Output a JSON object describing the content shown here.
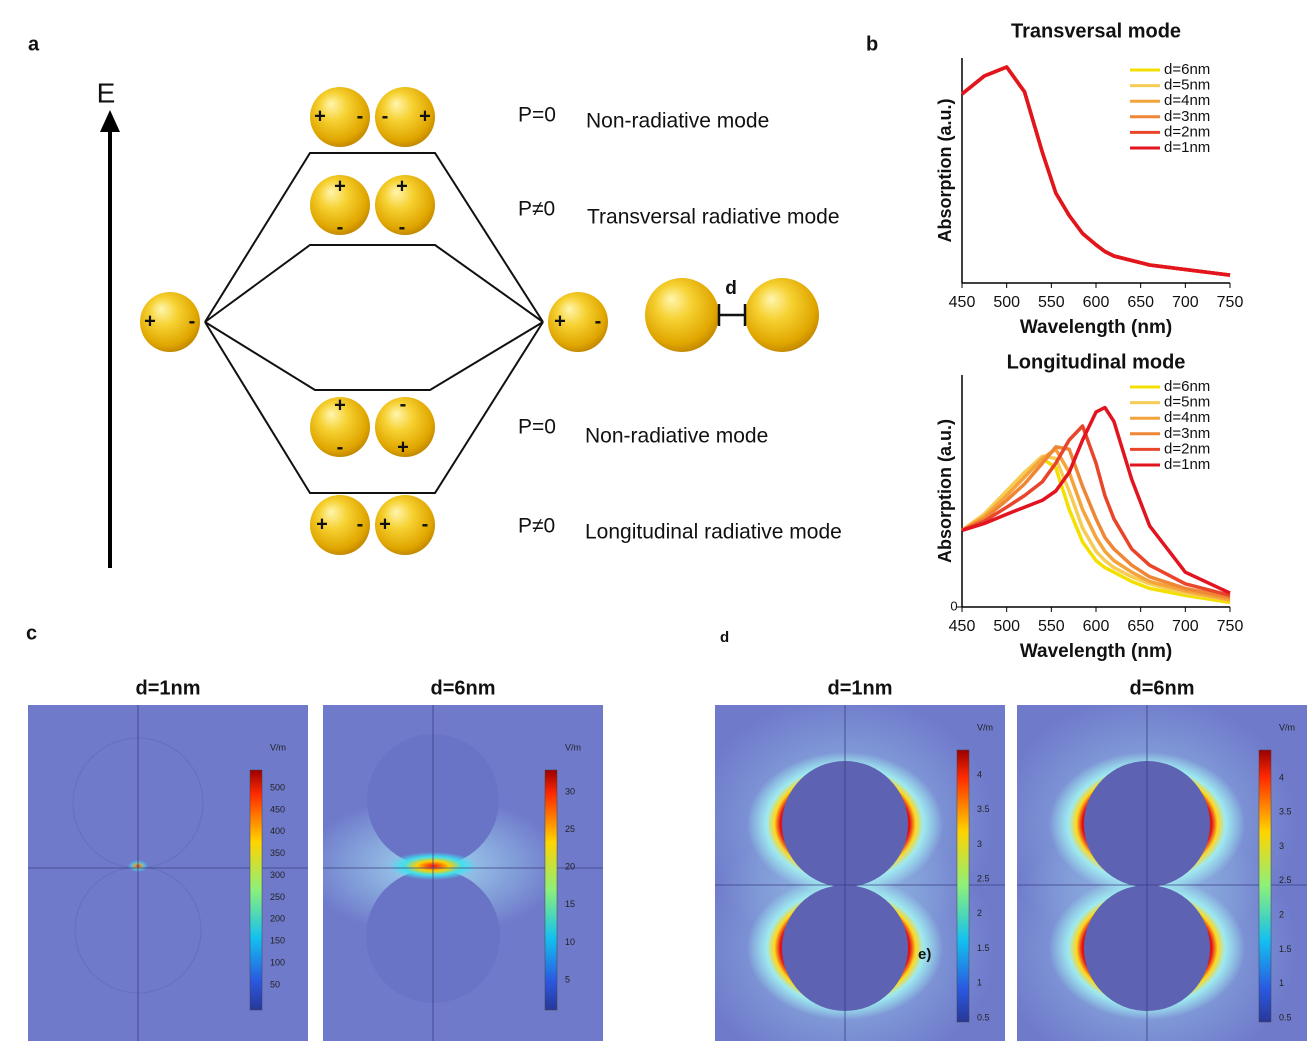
{
  "panel_labels": [
    "a",
    "b",
    "c",
    "d"
  ],
  "panel_a": {
    "energy_axis": "E",
    "plus": "+",
    "minus": "-",
    "gap_label": "d",
    "modes": [
      {
        "polarization": "P=0",
        "name": "Non-radiative mode"
      },
      {
        "polarization": "P≠0",
        "name": "Transversal radiative mode"
      },
      {
        "polarization": "P=0",
        "name": "Non-radiative mode"
      },
      {
        "polarization": "P≠0",
        "name": "Longitudinal radiative mode"
      }
    ]
  },
  "chart_data": [
    {
      "type": "line",
      "title": "Transversal mode",
      "x_label": "Wavelength (nm)",
      "y_label": "Absorption (a.u.)",
      "x": [
        450,
        475,
        500,
        520,
        540,
        555,
        570,
        585,
        600,
        610,
        620,
        640,
        660,
        700,
        750
      ],
      "xlim": [
        450,
        750
      ],
      "ylim": [
        0,
        1
      ],
      "xticks": [
        450,
        500,
        550,
        600,
        650,
        700,
        750
      ],
      "yticks": [],
      "legend": "upper right",
      "series": [
        {
          "name": "d=6nm",
          "color": "#f3e000",
          "values": [
            0.84,
            0.92,
            0.96,
            0.85,
            0.58,
            0.4,
            0.3,
            0.22,
            0.17,
            0.14,
            0.12,
            0.1,
            0.08,
            0.06,
            0.035
          ]
        },
        {
          "name": "d=5nm",
          "color": "#f7cc55",
          "values": [
            0.84,
            0.92,
            0.96,
            0.85,
            0.58,
            0.4,
            0.3,
            0.22,
            0.17,
            0.14,
            0.12,
            0.1,
            0.08,
            0.06,
            0.035
          ]
        },
        {
          "name": "d=4nm",
          "color": "#f4a43a",
          "values": [
            0.84,
            0.92,
            0.96,
            0.85,
            0.58,
            0.4,
            0.3,
            0.22,
            0.17,
            0.14,
            0.12,
            0.1,
            0.08,
            0.06,
            0.035
          ]
        },
        {
          "name": "d=3nm",
          "color": "#ef8636",
          "values": [
            0.84,
            0.92,
            0.96,
            0.85,
            0.58,
            0.4,
            0.3,
            0.22,
            0.17,
            0.14,
            0.12,
            0.1,
            0.08,
            0.06,
            0.035
          ]
        },
        {
          "name": "d=2nm",
          "color": "#e8452b",
          "values": [
            0.84,
            0.92,
            0.96,
            0.85,
            0.58,
            0.4,
            0.3,
            0.22,
            0.17,
            0.14,
            0.12,
            0.1,
            0.08,
            0.06,
            0.035
          ]
        },
        {
          "name": "d=1nm",
          "color": "#e2141f",
          "values": [
            0.84,
            0.92,
            0.96,
            0.85,
            0.58,
            0.4,
            0.3,
            0.22,
            0.17,
            0.14,
            0.12,
            0.1,
            0.08,
            0.06,
            0.035
          ]
        }
      ]
    },
    {
      "type": "line",
      "title": "Longitudinal mode",
      "x_label": "Wavelength (nm)",
      "y_label": "Absorption (a.u.)",
      "x": [
        450,
        475,
        500,
        520,
        540,
        555,
        570,
        585,
        600,
        610,
        620,
        640,
        660,
        700,
        750
      ],
      "xlim": [
        450,
        750
      ],
      "ylim": [
        0,
        1
      ],
      "xticks": [
        450,
        500,
        550,
        600,
        650,
        700,
        750
      ],
      "yticks": [
        0
      ],
      "legend": "upper right",
      "series": [
        {
          "name": "d=6nm",
          "color": "#f3e000",
          "values": [
            0.33,
            0.4,
            0.5,
            0.58,
            0.64,
            0.6,
            0.42,
            0.28,
            0.2,
            0.17,
            0.15,
            0.11,
            0.08,
            0.05,
            0.02
          ]
        },
        {
          "name": "d=5nm",
          "color": "#f7cc55",
          "values": [
            0.33,
            0.4,
            0.5,
            0.58,
            0.65,
            0.64,
            0.5,
            0.34,
            0.24,
            0.2,
            0.17,
            0.13,
            0.1,
            0.06,
            0.03
          ]
        },
        {
          "name": "d=4nm",
          "color": "#f4a43a",
          "values": [
            0.33,
            0.39,
            0.48,
            0.56,
            0.64,
            0.68,
            0.58,
            0.42,
            0.3,
            0.24,
            0.2,
            0.15,
            0.11,
            0.07,
            0.03
          ]
        },
        {
          "name": "d=3nm",
          "color": "#ef8636",
          "values": [
            0.33,
            0.38,
            0.46,
            0.53,
            0.62,
            0.69,
            0.68,
            0.52,
            0.38,
            0.3,
            0.25,
            0.18,
            0.13,
            0.08,
            0.04
          ]
        },
        {
          "name": "d=2nm",
          "color": "#e8452b",
          "values": [
            0.33,
            0.37,
            0.43,
            0.48,
            0.54,
            0.62,
            0.72,
            0.78,
            0.62,
            0.48,
            0.38,
            0.25,
            0.18,
            0.1,
            0.05
          ]
        },
        {
          "name": "d=1nm",
          "color": "#e2141f",
          "values": [
            0.33,
            0.36,
            0.4,
            0.43,
            0.46,
            0.5,
            0.58,
            0.72,
            0.84,
            0.86,
            0.8,
            0.55,
            0.35,
            0.15,
            0.06
          ]
        }
      ]
    }
  ],
  "panel_c": {
    "maps": [
      {
        "title": "d=1nm",
        "unit": "V/m",
        "colorbar_ticks": [
          500,
          450,
          400,
          350,
          300,
          250,
          200,
          150,
          100,
          50
        ]
      },
      {
        "title": "d=6nm",
        "unit": "V/m",
        "colorbar_ticks": [
          30,
          25,
          20,
          15,
          10,
          5
        ]
      }
    ]
  },
  "panel_d": {
    "annotation": "e)",
    "maps": [
      {
        "title": "d=1nm",
        "unit": "V/m",
        "colorbar_ticks": [
          4,
          3.5,
          3,
          2.5,
          2,
          1.5,
          1,
          0.5
        ]
      },
      {
        "title": "d=6nm",
        "unit": "V/m",
        "colorbar_ticks": [
          4,
          3.5,
          3,
          2.5,
          2,
          1.5,
          1,
          0.5
        ]
      }
    ]
  }
}
